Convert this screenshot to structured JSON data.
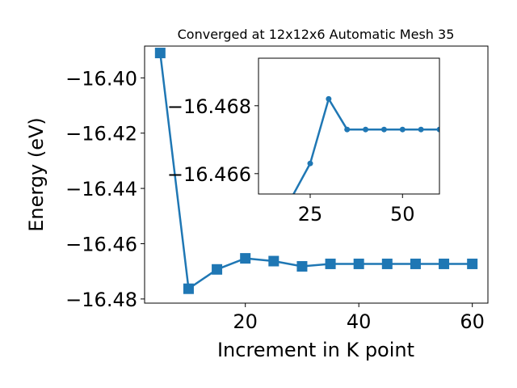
{
  "chart_data": [
    {
      "type": "line",
      "title": "Converged at 12x12x6 Automatic Mesh 35",
      "xlabel": "Increment in K point",
      "ylabel": "Energy (eV)",
      "xlim": [
        2.25,
        62.75
      ],
      "ylim": [
        -16.4815,
        -16.3885
      ],
      "xticks": [
        "20",
        "40",
        "60"
      ],
      "yticks": [
        "−16.40",
        "−16.42",
        "−16.44",
        "−16.46",
        "−16.48"
      ],
      "marker": "square",
      "color": "#1f77b4",
      "x": [
        5,
        10,
        15,
        20,
        25,
        30,
        35,
        40,
        45,
        50,
        55,
        60
      ],
      "y": [
        -16.391,
        -16.4763,
        -16.4693,
        -16.4653,
        -16.4663,
        -16.4682,
        -16.4673,
        -16.4673,
        -16.4673,
        -16.4673,
        -16.4673,
        -16.4673
      ]
    },
    {
      "type": "line",
      "role": "inset",
      "xlim": [
        11,
        60
      ],
      "ylim": [
        -16.4654,
        -16.4694
      ],
      "xticks": [
        "25",
        "50"
      ],
      "yticks": [
        "−16.468",
        "−16.466"
      ],
      "marker": "circle",
      "color": "#1f77b4",
      "x": [
        20,
        25,
        30,
        35,
        40,
        45,
        50,
        55,
        60
      ],
      "y": [
        -16.4653,
        -16.4663,
        -16.4682,
        -16.4673,
        -16.4673,
        -16.4673,
        -16.4673,
        -16.4673,
        -16.4673
      ]
    }
  ]
}
